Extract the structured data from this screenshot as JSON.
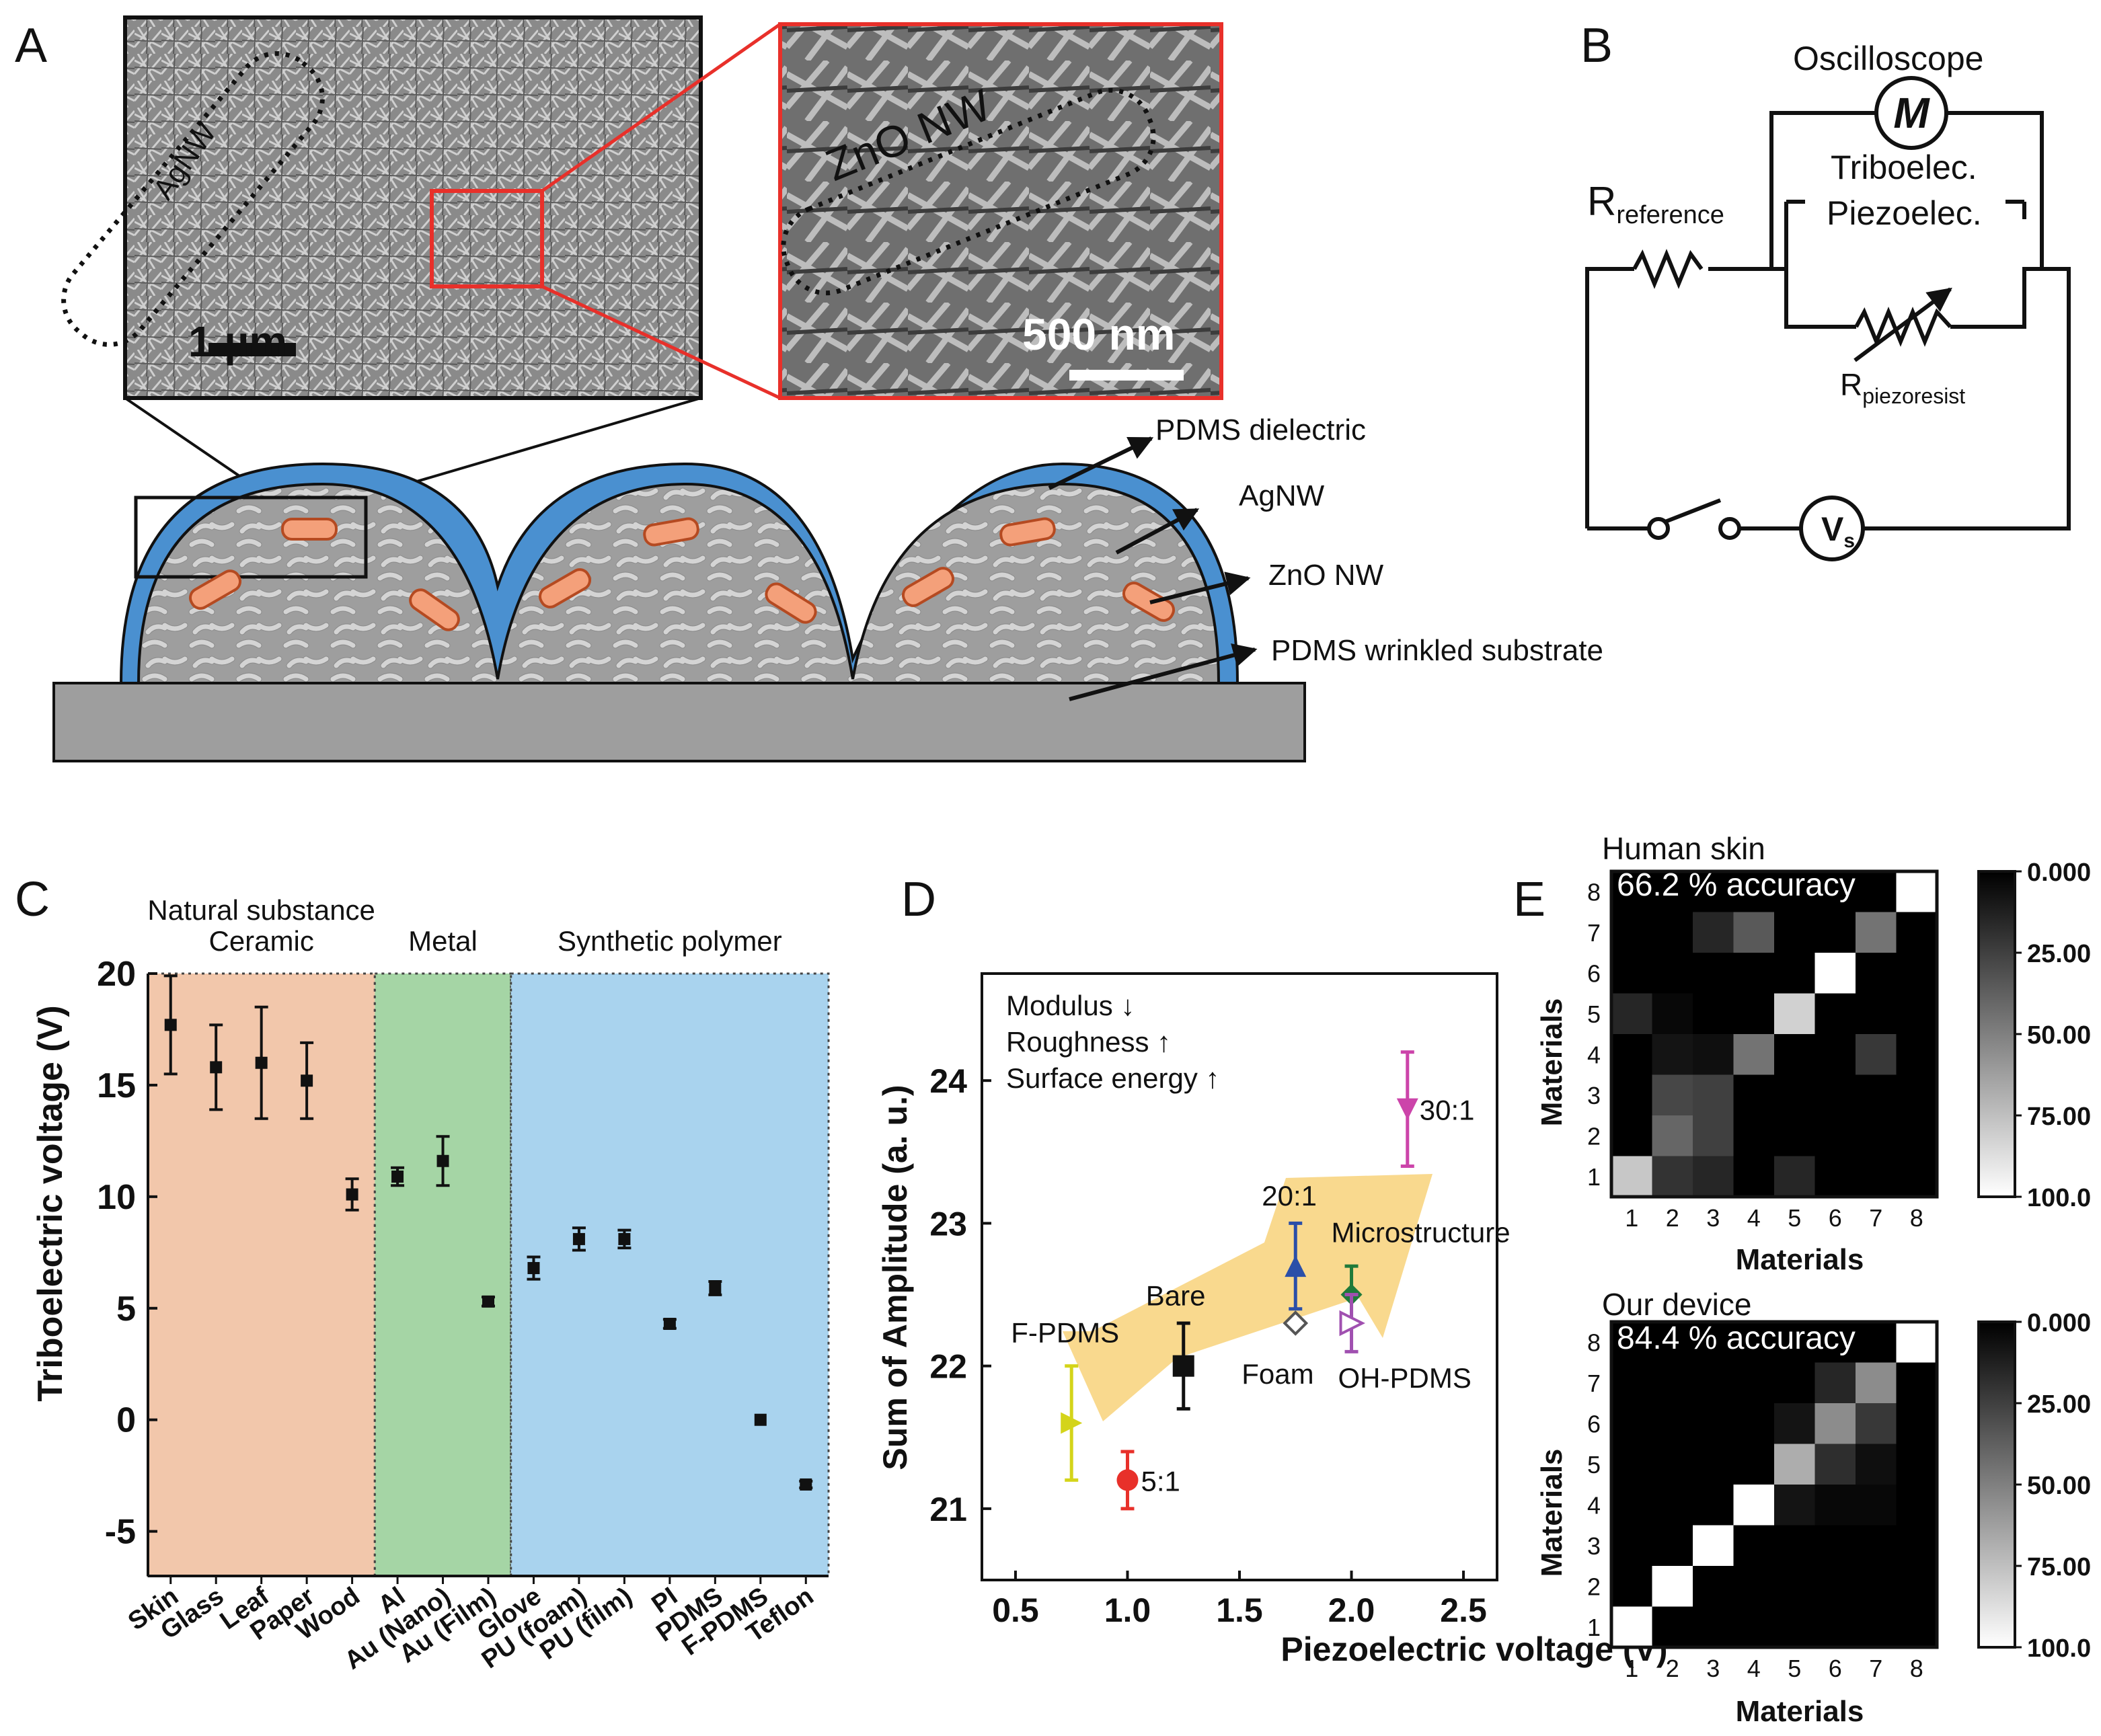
{
  "panels": {
    "A": {
      "letter": "A",
      "sem_left": {
        "label": "AgNW",
        "scalebar": "1 µm"
      },
      "sem_right": {
        "label": "ZnO NW",
        "scalebar": "500 nm"
      },
      "callouts": [
        "PDMS dielectric",
        "AgNW",
        "ZnO NW",
        "PDMS wrinkled substrate"
      ],
      "colors": {
        "pdms": "#4a90d0",
        "substrate": "#9e9e9e",
        "zno": "#f4a07a",
        "zoom_box": "#e8302a"
      }
    },
    "B": {
      "letter": "B",
      "oscilloscope": "Oscilloscope",
      "meter_symbol": "M",
      "r_reference": {
        "main": "R",
        "sub": "reference"
      },
      "tribo": "Triboelec.",
      "piezo": "Piezoelec.",
      "r_piezo": {
        "main": "R",
        "sub": "piezoresist"
      },
      "source": {
        "main": "V",
        "sub": "s"
      }
    },
    "C": {
      "letter": "C"
    },
    "D": {
      "letter": "D"
    },
    "E": {
      "letter": "E",
      "colorbar_ticks": [
        "0.000",
        "25.00",
        "50.00",
        "75.00",
        "100.0"
      ],
      "top": {
        "title": "Human skin",
        "accuracy": "66.2 % accuracy"
      },
      "bottom": {
        "title": "Our device",
        "accuracy": "84.4 % accuracy"
      }
    }
  },
  "chart_data": [
    {
      "id": "C",
      "type": "scatter",
      "title": "",
      "ylabel": "Triboelectric voltage (V)",
      "ylim": [
        -7,
        20
      ],
      "yticks": [
        20,
        15,
        10,
        5,
        0,
        -5
      ],
      "yticks_labels": [
        "20",
        "15",
        "10",
        "5",
        "0",
        "-5"
      ],
      "groups": [
        {
          "label_line1": "Natural substance",
          "label_line2": "Ceramic",
          "color": "#f2c7ab",
          "from": 0,
          "to": 4
        },
        {
          "label_line1": "",
          "label_line2": "Metal",
          "color": "#a5d5a5",
          "from": 5,
          "to": 7
        },
        {
          "label_line1": "",
          "label_line2": "Synthetic polymer",
          "color": "#a9d3ee",
          "from": 8,
          "to": 14
        }
      ],
      "categories": [
        "Skin",
        "Glass",
        "Leaf",
        "Paper",
        "Wood",
        "Al",
        "Au (Nano)",
        "Au (Film)",
        "Glove",
        "PU (foam)",
        "PU (film)",
        "PI",
        "PDMS",
        "F-PDMS",
        "Teflon"
      ],
      "values": [
        17.7,
        15.8,
        16.0,
        15.2,
        10.1,
        10.9,
        11.6,
        5.3,
        6.8,
        8.1,
        8.1,
        4.3,
        5.9,
        0.0,
        -2.9
      ],
      "errors": [
        2.2,
        1.9,
        2.5,
        1.7,
        0.7,
        0.4,
        1.1,
        0.2,
        0.5,
        0.5,
        0.4,
        0.2,
        0.3,
        0.1,
        0.15
      ]
    },
    {
      "id": "D",
      "type": "scatter",
      "xlabel": "Piezoelectric voltage (V)",
      "ylabel": "Sum of Amplitude (a. u.)",
      "xlim": [
        0.35,
        2.65
      ],
      "ylim": [
        20.5,
        24.75
      ],
      "xticks": [
        0.5,
        1.0,
        1.5,
        2.0,
        2.5
      ],
      "xticks_labels": [
        "0.5",
        "1.0",
        "1.5",
        "2.0",
        "2.5"
      ],
      "yticks": [
        21,
        22,
        23,
        24
      ],
      "yticks_labels": [
        "21",
        "22",
        "23",
        "24"
      ],
      "annotations": [
        "Modulus ↓",
        "Roughness ↑",
        "Surface energy ↑"
      ],
      "series": [
        {
          "name": "F-PDMS",
          "x": 0.75,
          "y": 21.6,
          "err": 0.4,
          "color": "#d4d41a",
          "marker": "triangle-right"
        },
        {
          "name": "5:1",
          "x": 1.0,
          "y": 21.2,
          "err": 0.2,
          "color": "#e8302a",
          "marker": "circle"
        },
        {
          "name": "Bare",
          "x": 1.25,
          "y": 22.0,
          "err": 0.3,
          "color": "#111111",
          "marker": "square"
        },
        {
          "name": "20:1",
          "x": 1.75,
          "y": 22.7,
          "err": 0.3,
          "color": "#2b4fa8",
          "marker": "triangle-up"
        },
        {
          "name": "Foam",
          "x": 1.75,
          "y": 22.3,
          "err": 0.0,
          "color": "#555555",
          "marker": "diamond-open"
        },
        {
          "name": "Microstructure",
          "x": 2.0,
          "y": 22.5,
          "err": 0.2,
          "color": "#1f7a3a",
          "marker": "diamond"
        },
        {
          "name": "OH-PDMS",
          "x": 2.0,
          "y": 22.3,
          "err": 0.2,
          "color": "#a050b0",
          "marker": "triangle-right-open"
        },
        {
          "name": "30:1",
          "x": 2.25,
          "y": 23.8,
          "err": 0.4,
          "color": "#cc44aa",
          "marker": "triangle-down"
        }
      ]
    },
    {
      "id": "E-top",
      "type": "heatmap",
      "title": "Human skin",
      "xlabel": "Materials",
      "ylabel": "Materials",
      "x": [
        "1",
        "2",
        "3",
        "4",
        "5",
        "6",
        "7",
        "8"
      ],
      "y": [
        "1",
        "2",
        "3",
        "4",
        "5",
        "6",
        "7",
        "8"
      ],
      "values_rows_from_top": [
        [
          0,
          0,
          0,
          0,
          0,
          0,
          0,
          100
        ],
        [
          0,
          0,
          15,
          35,
          0,
          0,
          45,
          0
        ],
        [
          0,
          0,
          0,
          0,
          0,
          100,
          0,
          0
        ],
        [
          15,
          3,
          0,
          0,
          82,
          0,
          0,
          0
        ],
        [
          0,
          8,
          6,
          45,
          0,
          0,
          22,
          0
        ],
        [
          0,
          28,
          25,
          0,
          0,
          0,
          0,
          0
        ],
        [
          0,
          40,
          25,
          0,
          0,
          0,
          0,
          0
        ],
        [
          78,
          20,
          15,
          0,
          15,
          0,
          0,
          0
        ]
      ],
      "colorbar_range": [
        0,
        100
      ]
    },
    {
      "id": "E-bottom",
      "type": "heatmap",
      "title": "Our device",
      "xlabel": "Materials",
      "ylabel": "Materials",
      "x": [
        "1",
        "2",
        "3",
        "4",
        "5",
        "6",
        "7",
        "8"
      ],
      "y": [
        "1",
        "2",
        "3",
        "4",
        "5",
        "6",
        "7",
        "8"
      ],
      "values_rows_from_top": [
        [
          0,
          0,
          0,
          0,
          0,
          0,
          0,
          100
        ],
        [
          0,
          0,
          0,
          0,
          0,
          15,
          55,
          0
        ],
        [
          0,
          0,
          0,
          0,
          8,
          55,
          22,
          0
        ],
        [
          0,
          0,
          0,
          0,
          68,
          18,
          6,
          0
        ],
        [
          0,
          0,
          0,
          100,
          8,
          3,
          3,
          0
        ],
        [
          0,
          0,
          100,
          0,
          0,
          0,
          0,
          0
        ],
        [
          0,
          100,
          0,
          0,
          0,
          0,
          0,
          0
        ],
        [
          100,
          0,
          0,
          0,
          0,
          0,
          0,
          0
        ]
      ],
      "colorbar_range": [
        0,
        100
      ]
    }
  ]
}
